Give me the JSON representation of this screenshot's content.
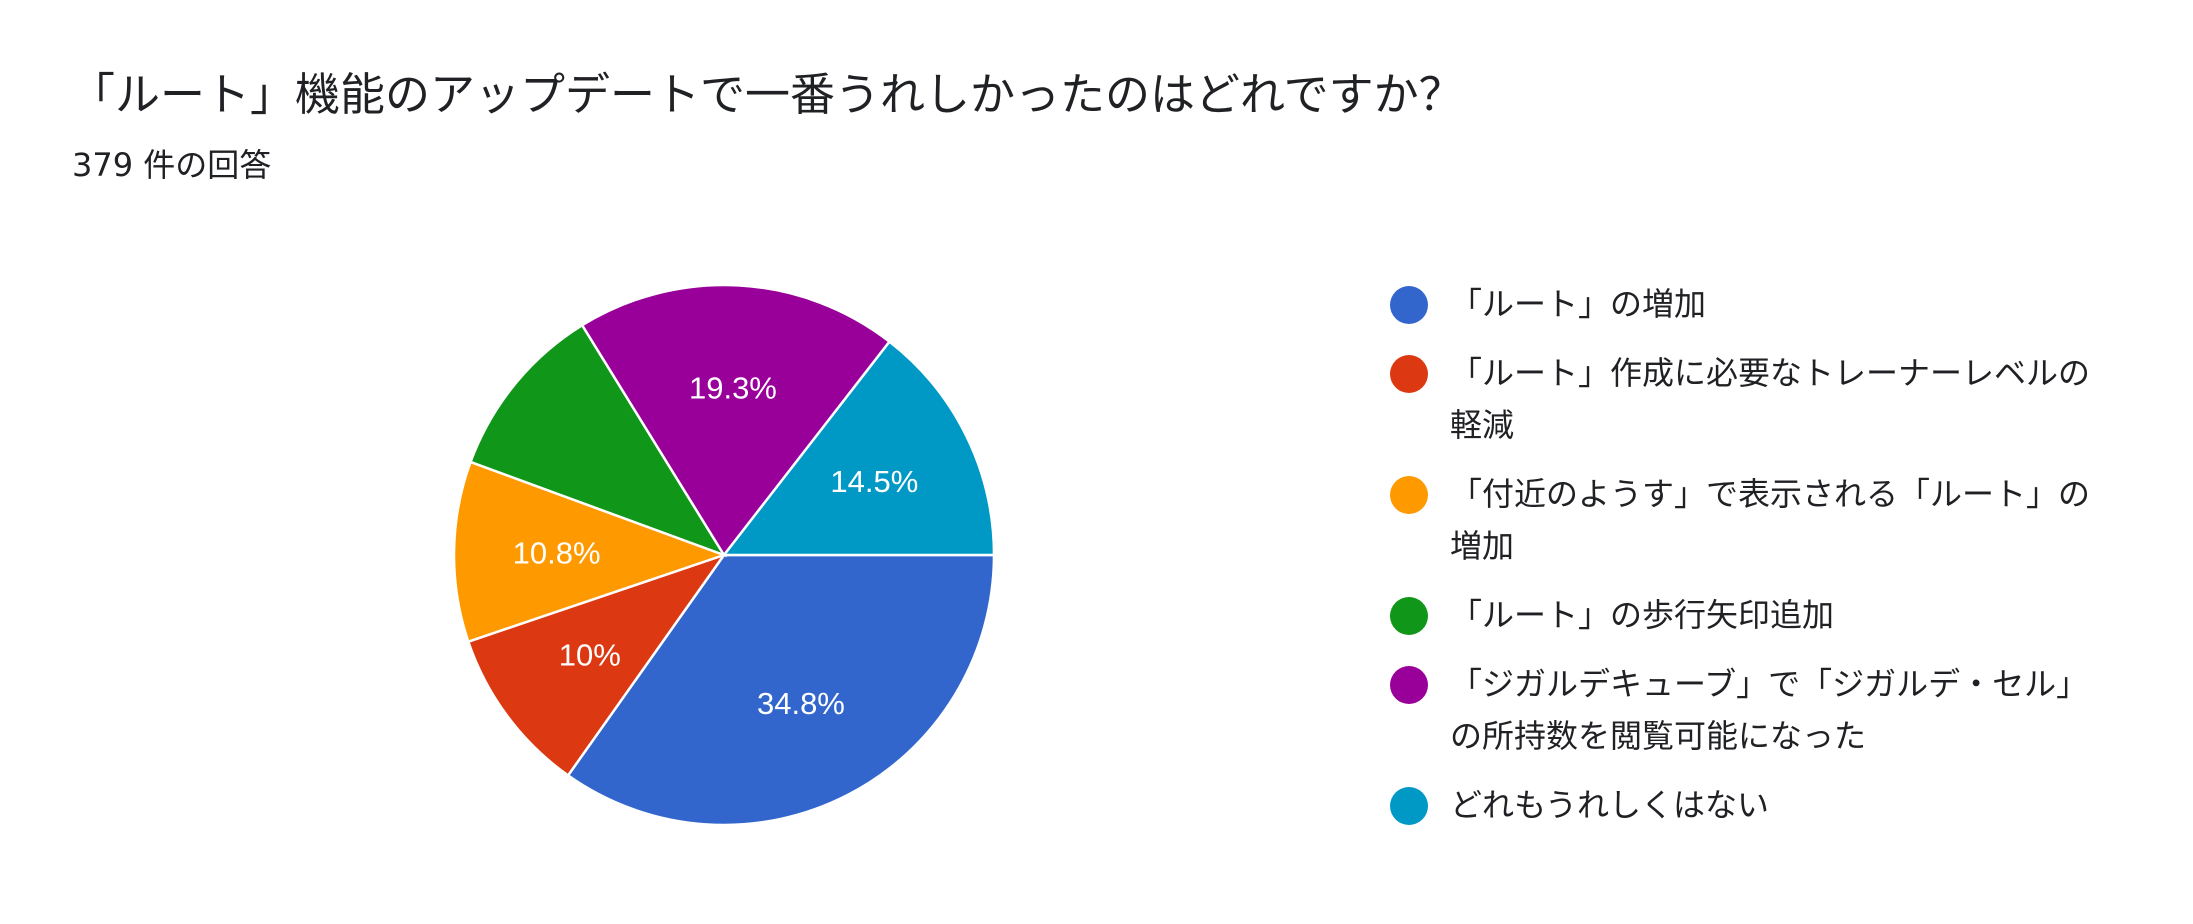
{
  "title": "「ルート」機能のアップデートで一番うれしかったのはどれですか？",
  "subtitle": "379 件の回答",
  "chart_data": {
    "type": "pie",
    "title": "「ルート」機能のアップデートで一番うれしかったのはどれですか？",
    "subtitle": "379 件の回答",
    "legend_position": "right",
    "slices": [
      {
        "name": "「ルート」の増加",
        "value": 34.8,
        "label": "34.8%",
        "color": "#3366cc"
      },
      {
        "name": "「ルート」作成に必要なトレーナーレベルの軽減",
        "value": 10.0,
        "label": "10%",
        "color": "#dc3912"
      },
      {
        "name": "「付近のようす」で表示される「ルート」の増加",
        "value": 10.8,
        "label": "10.8%",
        "color": "#ff9900"
      },
      {
        "name": "「ルート」の歩行矢印追加",
        "value": 10.6,
        "label": "",
        "color": "#109618"
      },
      {
        "name": "「ジガルデキューブ」で「ジガルデ・セル」の所持数を閲覧可能になった",
        "value": 19.3,
        "label": "19.3%",
        "color": "#990099"
      },
      {
        "name": "どれもうれしくはない",
        "value": 14.5,
        "label": "14.5%",
        "color": "#0099c6"
      }
    ]
  }
}
